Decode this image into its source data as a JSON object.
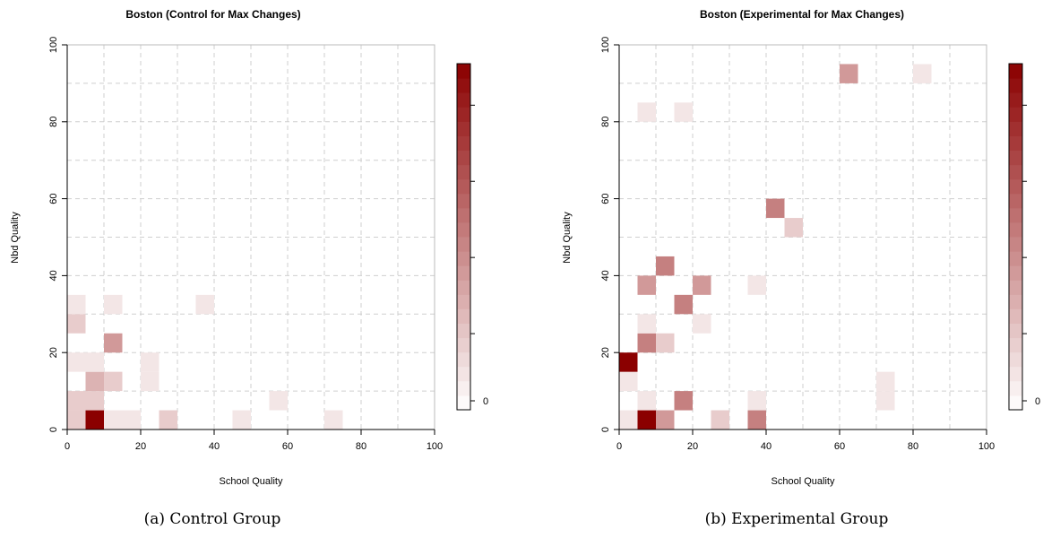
{
  "chart_data": [
    {
      "type": "heatmap",
      "title": "Boston (Control for Max Changes)",
      "xlabel": "School Quality",
      "ylabel": "Nbd Quality",
      "xlim": [
        0,
        100
      ],
      "ylim": [
        0,
        100
      ],
      "xticks": [
        0,
        20,
        40,
        60,
        80,
        100
      ],
      "yticks": [
        0,
        20,
        40,
        60,
        80,
        100
      ],
      "cell_size": 5,
      "grid": true,
      "colorbar": {
        "ticks": [
          0
        ],
        "min": 0,
        "max": 10,
        "low_color": "#ffffff",
        "high_color": "#8b0000"
      },
      "caption": "(a) Control Group",
      "cells": [
        {
          "x": 5,
          "y": 0,
          "v": 10
        },
        {
          "x": 0,
          "y": 0,
          "v": 2
        },
        {
          "x": 5,
          "y": 5,
          "v": 2
        },
        {
          "x": 10,
          "y": 0,
          "v": 1
        },
        {
          "x": 15,
          "y": 0,
          "v": 1
        },
        {
          "x": 25,
          "y": 0,
          "v": 2
        },
        {
          "x": 45,
          "y": 0,
          "v": 1
        },
        {
          "x": 70,
          "y": 0,
          "v": 1
        },
        {
          "x": 0,
          "y": 5,
          "v": 2
        },
        {
          "x": 55,
          "y": 5,
          "v": 1
        },
        {
          "x": 5,
          "y": 10,
          "v": 3
        },
        {
          "x": 10,
          "y": 10,
          "v": 2
        },
        {
          "x": 20,
          "y": 10,
          "v": 1
        },
        {
          "x": 0,
          "y": 15,
          "v": 1
        },
        {
          "x": 5,
          "y": 15,
          "v": 1
        },
        {
          "x": 20,
          "y": 15,
          "v": 1
        },
        {
          "x": 10,
          "y": 20,
          "v": 4
        },
        {
          "x": 0,
          "y": 25,
          "v": 2
        },
        {
          "x": 0,
          "y": 30,
          "v": 1
        },
        {
          "x": 10,
          "y": 30,
          "v": 1
        },
        {
          "x": 35,
          "y": 30,
          "v": 1
        }
      ]
    },
    {
      "type": "heatmap",
      "title": "Boston (Experimental for Max Changes)",
      "xlabel": "School Quality",
      "ylabel": "Nbd Quality",
      "xlim": [
        0,
        100
      ],
      "ylim": [
        0,
        100
      ],
      "xticks": [
        0,
        20,
        40,
        60,
        80,
        100
      ],
      "yticks": [
        0,
        20,
        40,
        60,
        80,
        100
      ],
      "cell_size": 5,
      "grid": true,
      "colorbar": {
        "ticks": [
          0
        ],
        "min": 0,
        "max": 10,
        "low_color": "#ffffff",
        "high_color": "#8b0000"
      },
      "caption": "(b) Experimental Group",
      "cells": [
        {
          "x": 5,
          "y": 0,
          "v": 10
        },
        {
          "x": 0,
          "y": 0,
          "v": 1
        },
        {
          "x": 10,
          "y": 0,
          "v": 4
        },
        {
          "x": 25,
          "y": 0,
          "v": 2
        },
        {
          "x": 35,
          "y": 0,
          "v": 5
        },
        {
          "x": 5,
          "y": 5,
          "v": 1
        },
        {
          "x": 15,
          "y": 5,
          "v": 5
        },
        {
          "x": 35,
          "y": 5,
          "v": 1
        },
        {
          "x": 70,
          "y": 5,
          "v": 1
        },
        {
          "x": 0,
          "y": 10,
          "v": 1
        },
        {
          "x": 70,
          "y": 10,
          "v": 1
        },
        {
          "x": 0,
          "y": 15,
          "v": 10
        },
        {
          "x": 5,
          "y": 20,
          "v": 5
        },
        {
          "x": 10,
          "y": 20,
          "v": 2
        },
        {
          "x": 5,
          "y": 25,
          "v": 1
        },
        {
          "x": 20,
          "y": 25,
          "v": 1
        },
        {
          "x": 15,
          "y": 30,
          "v": 5
        },
        {
          "x": 5,
          "y": 35,
          "v": 4
        },
        {
          "x": 20,
          "y": 35,
          "v": 4
        },
        {
          "x": 35,
          "y": 35,
          "v": 1
        },
        {
          "x": 10,
          "y": 40,
          "v": 5
        },
        {
          "x": 45,
          "y": 50,
          "v": 2
        },
        {
          "x": 40,
          "y": 55,
          "v": 5
        },
        {
          "x": 5,
          "y": 80,
          "v": 1
        },
        {
          "x": 15,
          "y": 80,
          "v": 1
        },
        {
          "x": 60,
          "y": 90,
          "v": 4
        },
        {
          "x": 80,
          "y": 90,
          "v": 1
        }
      ]
    }
  ]
}
